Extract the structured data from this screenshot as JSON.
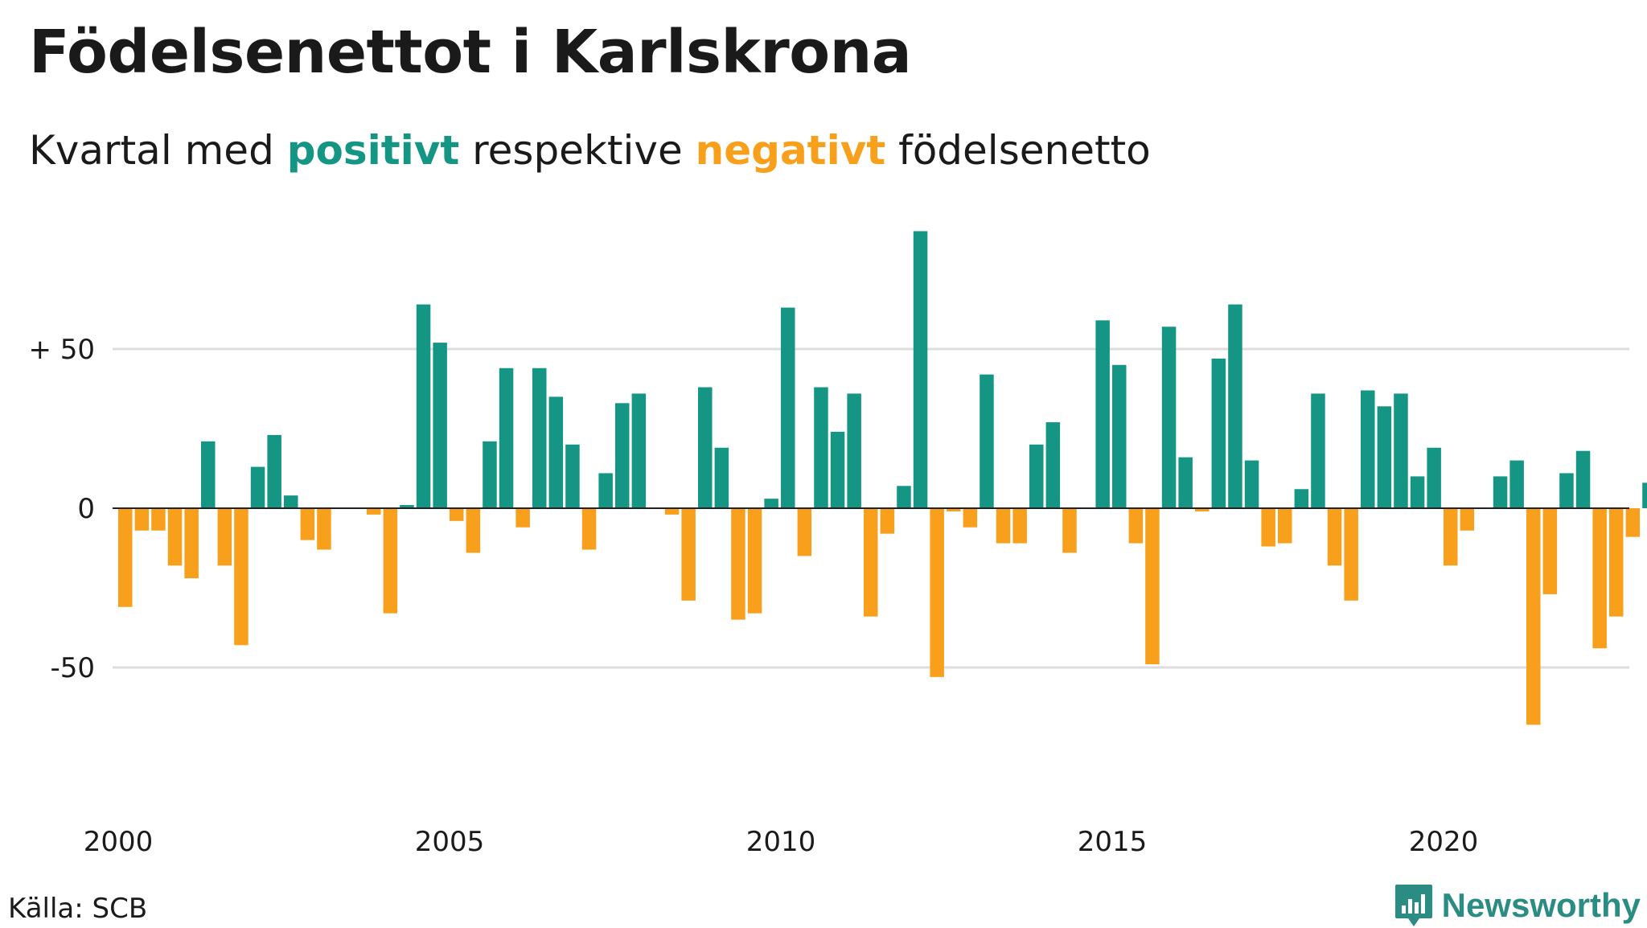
{
  "header": {
    "title": "Födelsenettot i Karlskrona",
    "subtitle_pre": "Kvartal med ",
    "subtitle_pos": "positivt",
    "subtitle_mid": " respektive ",
    "subtitle_neg": "negativt",
    "subtitle_post": " födelsenetto"
  },
  "colors": {
    "positive": "#159684",
    "negative": "#f8a01c",
    "grid": "#dddddd",
    "text": "#1a1a1a"
  },
  "footer": {
    "source": "Källa: SCB",
    "brand": "Newsworthy",
    "brand_icon": "bar-chart-logo-icon"
  },
  "chart_data": {
    "type": "bar",
    "x_start": "2000 Q1",
    "ylim": [
      -75,
      88
    ],
    "yticks": [
      {
        "value": 50,
        "label": "+ 50"
      },
      {
        "value": 0,
        "label": "0"
      },
      {
        "value": -50,
        "label": "-50"
      }
    ],
    "xticks": [
      "2000",
      "2005",
      "2010",
      "2015",
      "2020"
    ],
    "values": [
      -31,
      -7,
      -7,
      -18,
      -22,
      21,
      -18,
      -43,
      13,
      23,
      4,
      -10,
      -13,
      0,
      0,
      -2,
      -33,
      1,
      64,
      52,
      -4,
      -14,
      21,
      44,
      -6,
      44,
      35,
      20,
      -13,
      11,
      33,
      36,
      0,
      -2,
      -29,
      38,
      19,
      -35,
      -33,
      3,
      63,
      -15,
      38,
      24,
      36,
      -34,
      -8,
      7,
      87,
      -53,
      -1,
      -6,
      42,
      -11,
      -11,
      20,
      27,
      -14,
      0,
      59,
      45,
      -11,
      -49,
      57,
      16,
      -1,
      47,
      64,
      15,
      -12,
      -11,
      6,
      36,
      -18,
      -29,
      37,
      32,
      36,
      10,
      19,
      -18,
      -7,
      0,
      10,
      15,
      -68,
      -27,
      11,
      18,
      -44,
      -34,
      -9,
      8
    ]
  }
}
